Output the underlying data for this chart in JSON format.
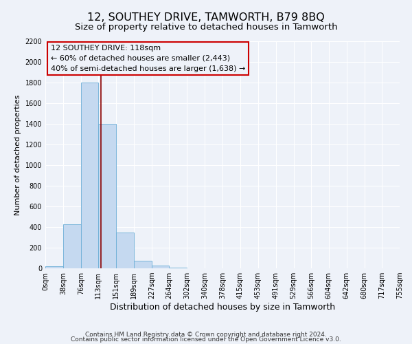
{
  "title": "12, SOUTHEY DRIVE, TAMWORTH, B79 8BQ",
  "subtitle": "Size of property relative to detached houses in Tamworth",
  "xlabel": "Distribution of detached houses by size in Tamworth",
  "ylabel": "Number of detached properties",
  "bar_heights": [
    20,
    425,
    1800,
    1400,
    350,
    75,
    25,
    5,
    0,
    0,
    0,
    0,
    0,
    0,
    0,
    0,
    0,
    0,
    0,
    0
  ],
  "bin_edges": [
    0,
    38,
    76,
    113,
    151,
    189,
    227,
    264,
    302,
    340,
    378,
    415,
    453,
    491,
    529,
    566,
    604,
    642,
    680,
    717,
    755
  ],
  "bar_color": "#c5d9f0",
  "bar_edgecolor": "#6baed6",
  "property_size": 118,
  "redline_color": "#8b0000",
  "ylim": [
    0,
    2200
  ],
  "yticks": [
    0,
    200,
    400,
    600,
    800,
    1000,
    1200,
    1400,
    1600,
    1800,
    2000,
    2200
  ],
  "xtick_labels": [
    "0sqm",
    "38sqm",
    "76sqm",
    "113sqm",
    "151sqm",
    "189sqm",
    "227sqm",
    "264sqm",
    "302sqm",
    "340sqm",
    "378sqm",
    "415sqm",
    "453sqm",
    "491sqm",
    "529sqm",
    "566sqm",
    "604sqm",
    "642sqm",
    "680sqm",
    "717sqm",
    "755sqm"
  ],
  "annotation_title": "12 SOUTHEY DRIVE: 118sqm",
  "annotation_line1": "← 60% of detached houses are smaller (2,443)",
  "annotation_line2": "40% of semi-detached houses are larger (1,638) →",
  "annotation_box_edgecolor": "#cc0000",
  "footer_line1": "Contains HM Land Registry data © Crown copyright and database right 2024.",
  "footer_line2": "Contains public sector information licensed under the Open Government Licence v3.0.",
  "background_color": "#eef2f9",
  "grid_color": "#ffffff",
  "title_fontsize": 11.5,
  "subtitle_fontsize": 9.5,
  "xlabel_fontsize": 9,
  "ylabel_fontsize": 8,
  "tick_fontsize": 7,
  "annotation_fontsize": 8,
  "footer_fontsize": 6.5
}
